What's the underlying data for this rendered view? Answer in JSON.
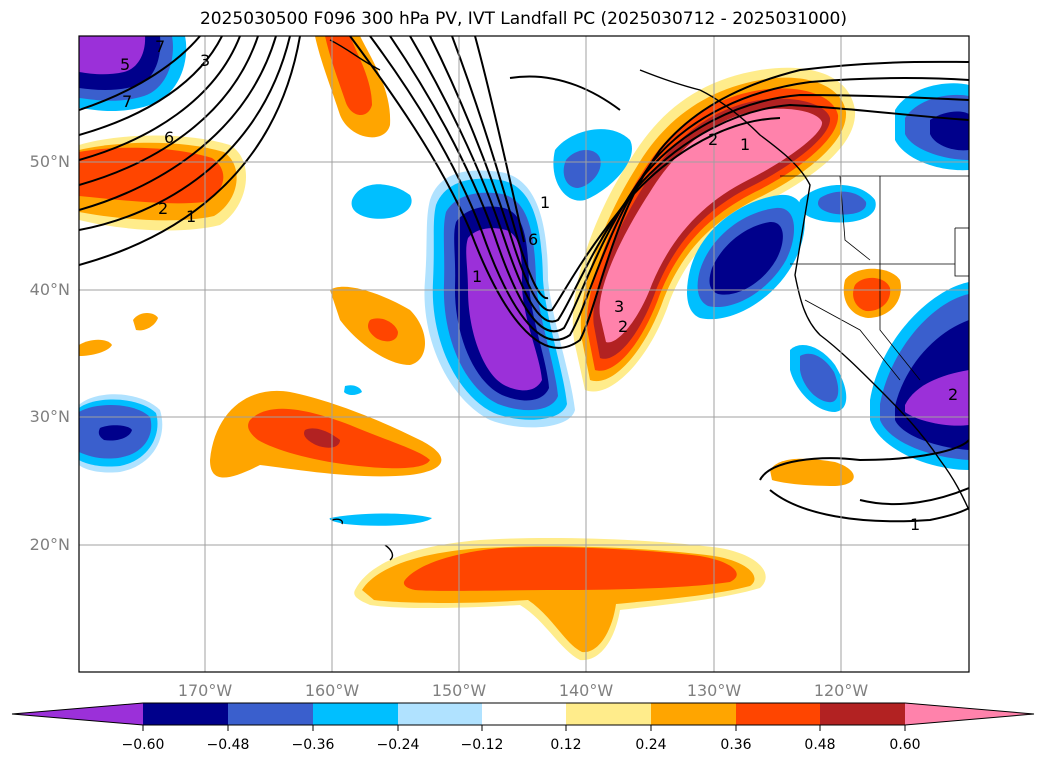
{
  "title": "2025030500 F096 300 hPa PV, IVT Landfall PC (2025030712 - 2025031000)",
  "latitude_labels": [
    "50°N",
    "40°N",
    "30°N",
    "20°N"
  ],
  "longitude_labels": [
    "170°W",
    "160°W",
    "150°W",
    "140°W",
    "130°W",
    "120°W"
  ],
  "contour_labels": [
    "7",
    "6",
    "5",
    "3",
    "2",
    "1",
    "7",
    "6",
    "1",
    "3",
    "2",
    "1",
    "2",
    "1",
    "2",
    "1"
  ],
  "colorbar": {
    "tick_labels": [
      "−0.60",
      "−0.48",
      "−0.36",
      "−0.24",
      "−0.12",
      "0.12",
      "0.24",
      "0.36",
      "0.48",
      "0.60"
    ],
    "colors": [
      "#9b30d9",
      "#00008b",
      "#3a5fcd",
      "#00bfff",
      "#b0e2ff",
      "#ffffff",
      "#ffec8b",
      "#ffa500",
      "#ff4500",
      "#b22222",
      "#ff82ab"
    ]
  }
}
